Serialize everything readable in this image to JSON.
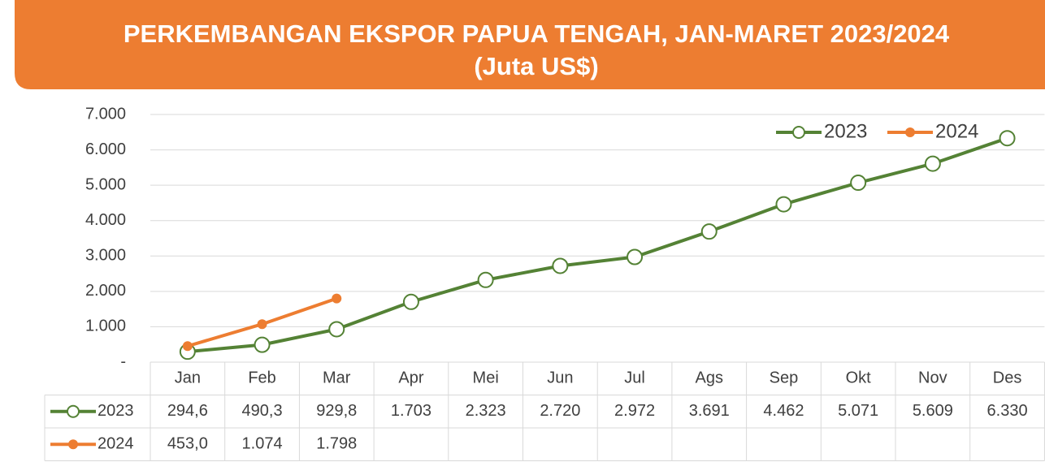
{
  "chart_data": {
    "type": "line",
    "title": "PERKEMBANGAN EKSPOR PAPUA TENGAH, JAN-MARET 2023/2024",
    "subtitle": "(Juta US$)",
    "categories": [
      "Jan",
      "Feb",
      "Mar",
      "Apr",
      "Mei",
      "Jun",
      "Jul",
      "Ags",
      "Sep",
      "Okt",
      "Nov",
      "Des"
    ],
    "series": [
      {
        "name": "2023",
        "color": "#548235",
        "values": [
          294.6,
          490.3,
          929.8,
          1703,
          2323,
          2720,
          2972,
          3691,
          4462,
          5071,
          5609,
          6330
        ],
        "value_labels": [
          "294,6",
          "490,3",
          "929,8",
          "1.703",
          "2.323",
          "2.720",
          "2.972",
          "3.691",
          "4.462",
          "5.071",
          "5.609",
          "6.330"
        ]
      },
      {
        "name": "2024",
        "color": "#ED7D31",
        "values": [
          453.0,
          1074,
          1798,
          null,
          null,
          null,
          null,
          null,
          null,
          null,
          null,
          null
        ],
        "value_labels": [
          "453,0",
          "1.074",
          "1.798",
          null,
          null,
          null,
          null,
          null,
          null,
          null,
          null,
          null
        ]
      }
    ],
    "ylim": [
      0,
      7000
    ],
    "yticks": [
      {
        "value": 0,
        "label": "-"
      },
      {
        "value": 1000,
        "label": "1.000"
      },
      {
        "value": 2000,
        "label": "2.000"
      },
      {
        "value": 3000,
        "label": "3.000"
      },
      {
        "value": 4000,
        "label": "4.000"
      },
      {
        "value": 5000,
        "label": "5.000"
      },
      {
        "value": 6000,
        "label": "6.000"
      },
      {
        "value": 7000,
        "label": "7.000"
      }
    ],
    "grid": true,
    "legend": "top-right"
  }
}
